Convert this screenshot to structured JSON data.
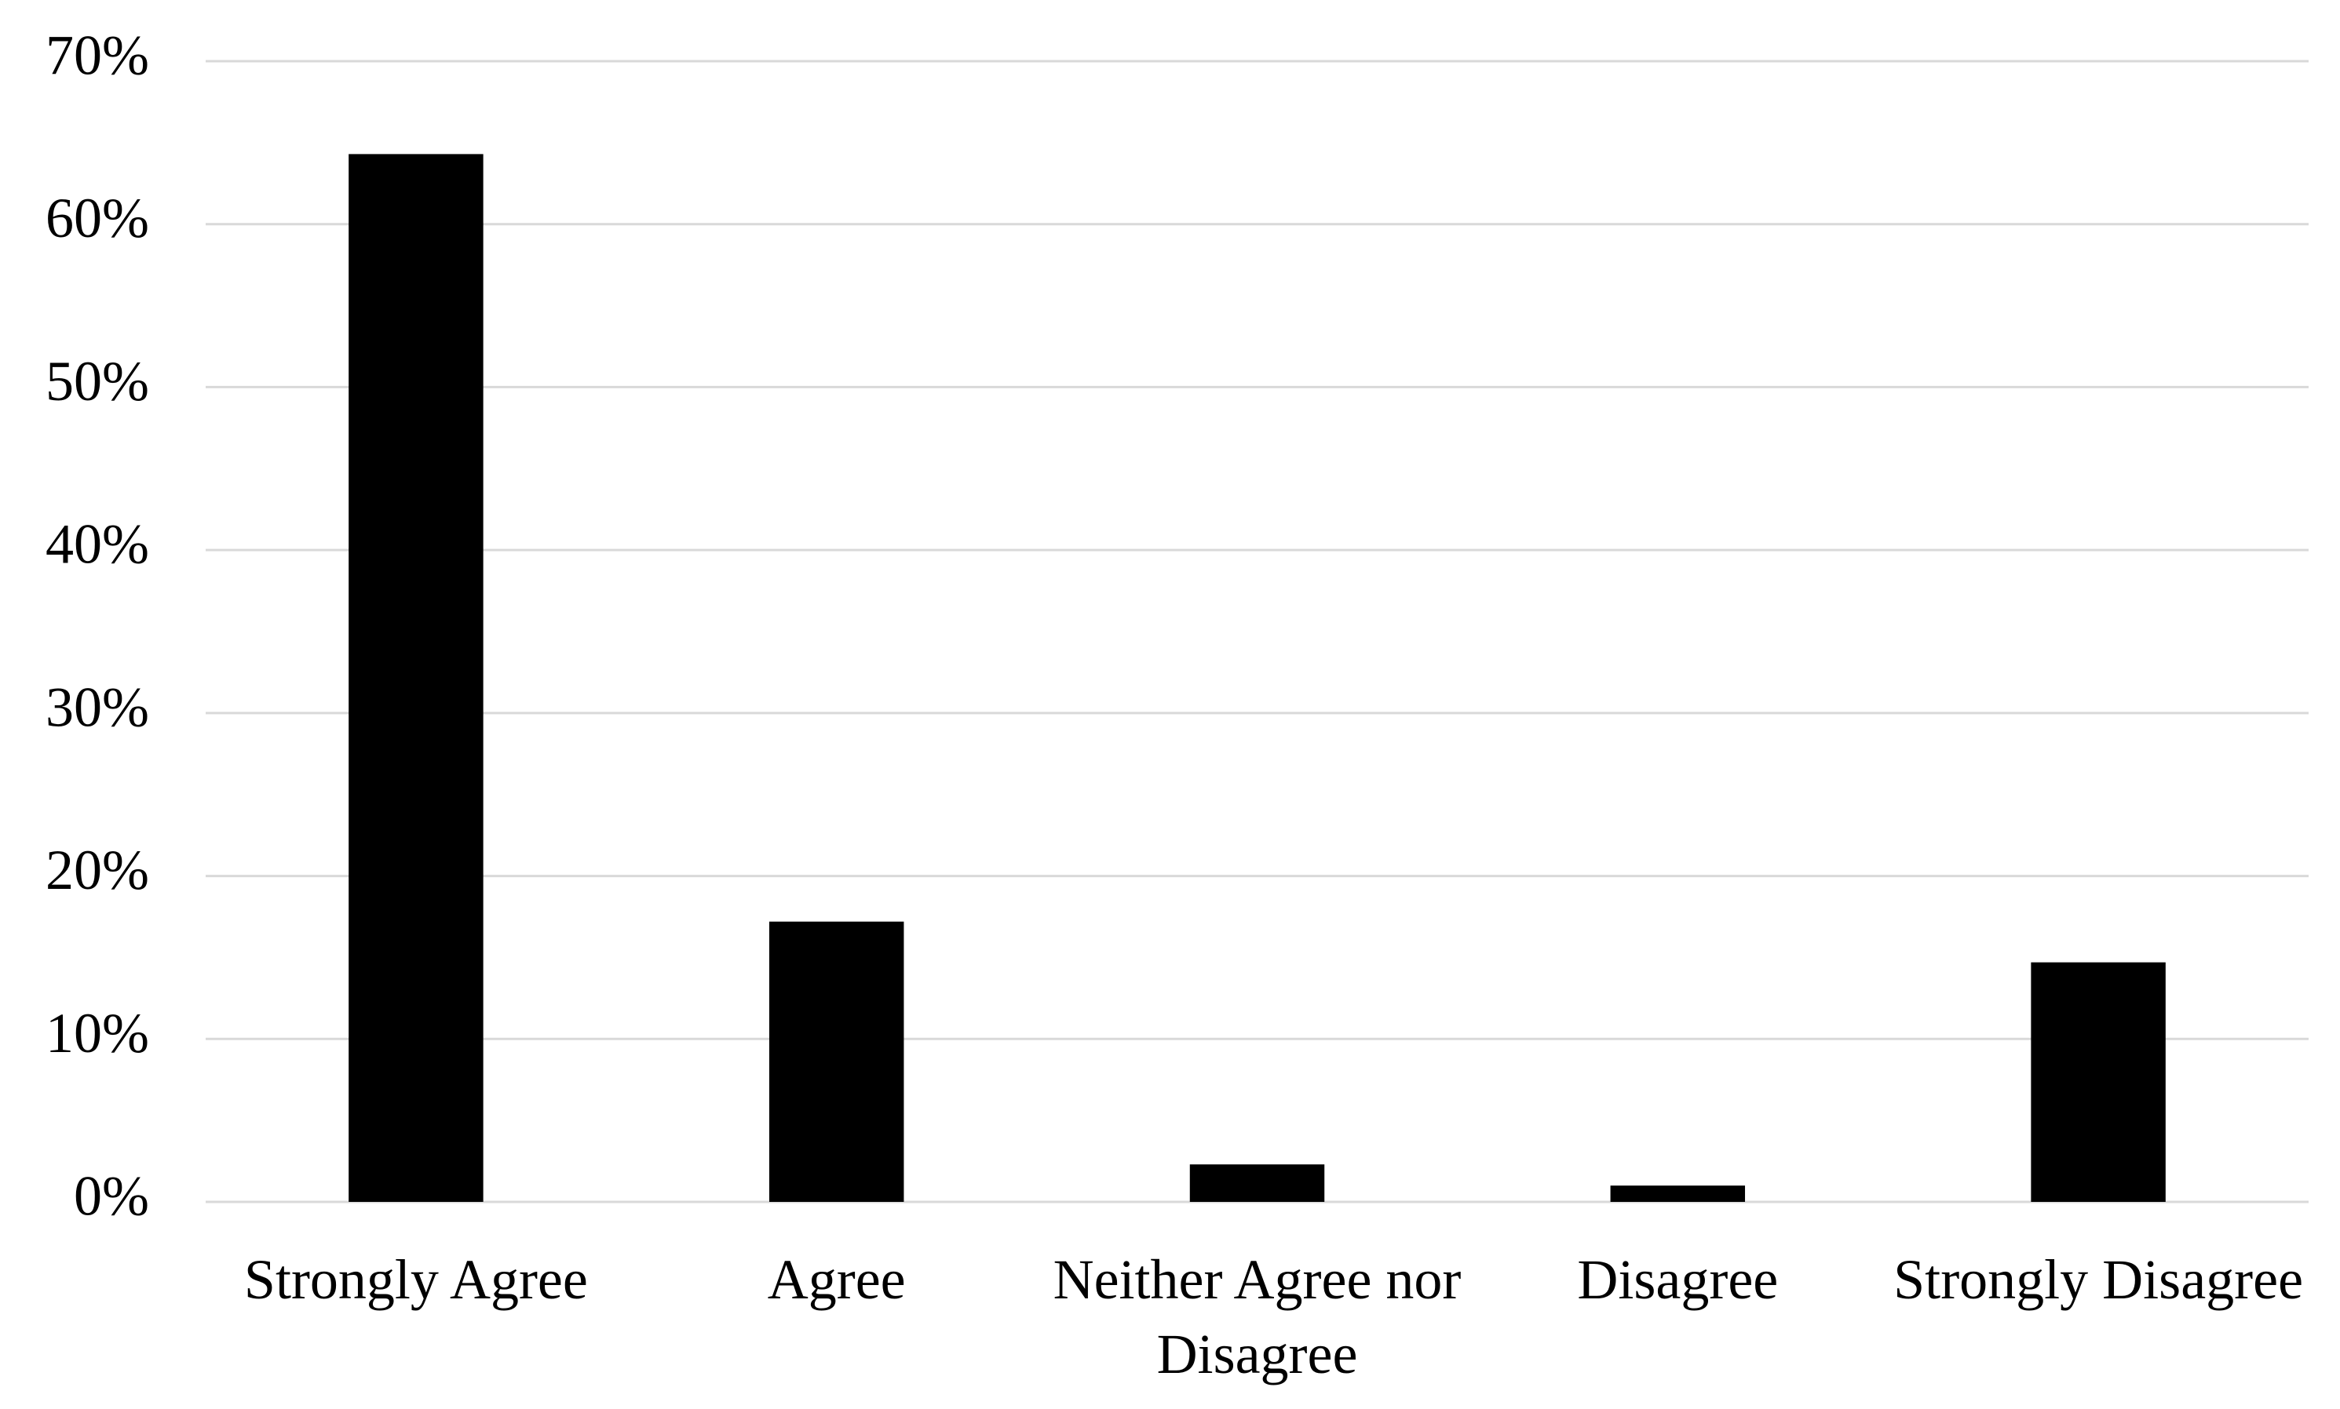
{
  "chart_data": {
    "type": "bar",
    "categories": [
      "Strongly Agree",
      "Agree",
      "Neither Agree nor Disagree",
      "Disagree",
      "Strongly Disagree"
    ],
    "values": [
      64.3,
      17.2,
      2.3,
      1.0,
      14.7
    ],
    "color": "#000000",
    "ylim": [
      0,
      70
    ],
    "yticks": [
      {
        "value": 0,
        "label": "0%"
      },
      {
        "value": 10,
        "label": "10%"
      },
      {
        "value": 20,
        "label": "20%"
      },
      {
        "value": 30,
        "label": "30%"
      },
      {
        "value": 40,
        "label": "40%"
      },
      {
        "value": 50,
        "label": "50%"
      },
      {
        "value": 60,
        "label": "60%"
      },
      {
        "value": 70,
        "label": "70%"
      }
    ],
    "grid": true
  }
}
